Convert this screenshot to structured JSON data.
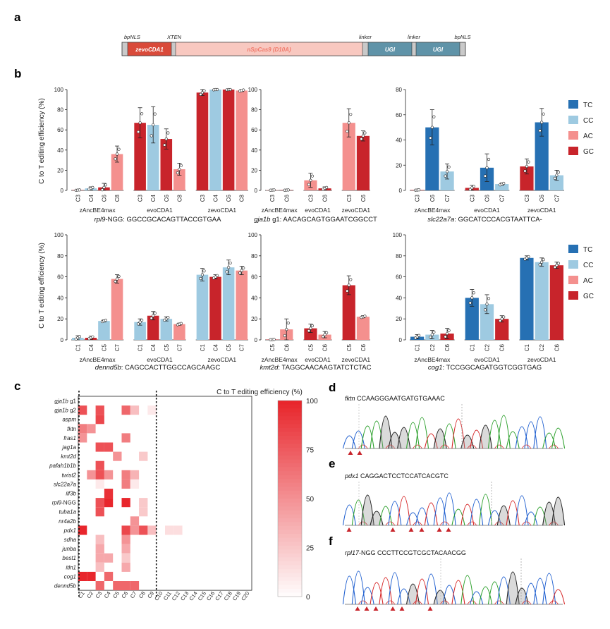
{
  "panel_labels": {
    "a": "a",
    "b": "b",
    "c": "c",
    "d": "d",
    "e": "e",
    "f": "f"
  },
  "construct": {
    "labels_top": [
      "bpNLS",
      "XTEN",
      "linker",
      "linker",
      "bpNLS"
    ],
    "segments": [
      {
        "label": "zevoCDA1",
        "color": "#d94a3a"
      },
      {
        "label": "nSpCas9 (D10A)",
        "color": "#f8c8c0"
      },
      {
        "label": "UGI",
        "color": "#5f93a8"
      },
      {
        "label": "UGI",
        "color": "#5f93a8"
      }
    ]
  },
  "legend": [
    {
      "label": "TC",
      "color": "#2670b3"
    },
    {
      "label": "CC",
      "color": "#9ecae1"
    },
    {
      "label": "AC",
      "color": "#f4908e"
    },
    {
      "label": "GC",
      "color": "#c8242b"
    }
  ],
  "y_axis_label": "C to T editing efficiency (%)",
  "chart_data": [
    {
      "type": "bar",
      "ylim": [
        0,
        100
      ],
      "yticks": [
        0,
        20,
        40,
        60,
        80,
        100
      ],
      "groups": [
        {
          "name": "zAncBE4max",
          "cats": [
            "C3",
            "C4",
            "C6",
            "C8"
          ],
          "colors": [
            "GC",
            "CC",
            "GC",
            "AC"
          ],
          "values": [
            0.3,
            2,
            3,
            36
          ],
          "err": [
            0.3,
            1.5,
            4,
            8
          ]
        },
        {
          "name": "evoCDA1",
          "cats": [
            "C3",
            "C4",
            "C6",
            "C8"
          ],
          "colors": [
            "GC",
            "CC",
            "GC",
            "AC"
          ],
          "values": [
            67,
            65,
            51,
            21
          ],
          "err": [
            15,
            18,
            10,
            6
          ]
        },
        {
          "name": "zevoCDA1",
          "cats": [
            "C3",
            "C4",
            "C6",
            "C8"
          ],
          "colors": [
            "GC",
            "CC",
            "GC",
            "AC"
          ],
          "values": [
            97,
            100,
            100,
            99
          ],
          "err": [
            3,
            0.5,
            0.5,
            1
          ]
        }
      ],
      "caption_italic": "rpl9",
      "caption": "-NGG: GGCCGCACAGTTACCGTGAA"
    },
    {
      "type": "bar",
      "ylim": [
        0,
        100
      ],
      "yticks": [
        0,
        20,
        40,
        60,
        80,
        100
      ],
      "groups": [
        {
          "name": "zAncBE4max",
          "cats": [
            "C3",
            "C6"
          ],
          "colors": [
            "AC",
            "GC"
          ],
          "values": [
            0.3,
            0.3
          ],
          "err": [
            0.2,
            0.2
          ]
        },
        {
          "name": "evoCDA1",
          "cats": [
            "C3",
            "C6"
          ],
          "colors": [
            "AC",
            "GC"
          ],
          "values": [
            10,
            2
          ],
          "err": [
            7,
            1.5
          ]
        },
        {
          "name": "zevoCDA1",
          "cats": [
            "C3",
            "C6"
          ],
          "colors": [
            "AC",
            "GC"
          ],
          "values": [
            67,
            54
          ],
          "err": [
            14,
            5
          ]
        }
      ],
      "caption_italic": "gja1b",
      "caption": " g1: AACAGCAGTGGAATCGGCCT"
    },
    {
      "type": "bar",
      "ylim": [
        0,
        80
      ],
      "yticks": [
        0,
        20,
        40,
        60,
        80
      ],
      "groups": [
        {
          "name": "zAncBE4max",
          "cats": [
            "C3",
            "C6",
            "C7"
          ],
          "colors": [
            "GC",
            "TC",
            "CC"
          ],
          "values": [
            0.3,
            50,
            15
          ],
          "err": [
            0.2,
            14,
            6
          ]
        },
        {
          "name": "evoCDA1",
          "cats": [
            "C3",
            "C6",
            "C7"
          ],
          "colors": [
            "GC",
            "TC",
            "CC"
          ],
          "values": [
            2,
            18,
            5
          ],
          "err": [
            2,
            11,
            1
          ]
        },
        {
          "name": "zevoCDA1",
          "cats": [
            "C3",
            "C6",
            "C7"
          ],
          "colors": [
            "GC",
            "TC",
            "CC"
          ],
          "values": [
            19,
            54,
            12
          ],
          "err": [
            6,
            11,
            4
          ]
        }
      ],
      "caption_italic": "slc22a7a",
      "caption": ": GGCATCCCACGTAATTCA-"
    },
    {
      "type": "bar",
      "ylim": [
        0,
        100
      ],
      "yticks": [
        0,
        20,
        40,
        60,
        80,
        100
      ],
      "groups": [
        {
          "name": "zAncBE4max",
          "cats": [
            "C1",
            "C4",
            "C5",
            "C7"
          ],
          "colors": [
            "CC",
            "GC",
            "CC",
            "AC"
          ],
          "values": [
            2,
            2,
            18,
            58
          ],
          "err": [
            2,
            1.5,
            1,
            4
          ]
        },
        {
          "name": "evoCDA1",
          "cats": [
            "C1",
            "C4",
            "C5",
            "C7"
          ],
          "colors": [
            "CC",
            "GC",
            "CC",
            "AC"
          ],
          "values": [
            17,
            23,
            20,
            15
          ],
          "err": [
            3,
            4,
            2,
            1
          ]
        },
        {
          "name": "zevoCDA1",
          "cats": [
            "C1",
            "C4",
            "C5",
            "C7"
          ],
          "colors": [
            "CC",
            "GC",
            "CC",
            "AC"
          ],
          "values": [
            62,
            60,
            69,
            66
          ],
          "err": [
            6,
            2,
            7,
            4
          ]
        }
      ],
      "caption_italic": "dennd5b",
      "caption": ":  CAGCCACTTGGCCAGCAAGC"
    },
    {
      "type": "bar",
      "ylim": [
        0,
        100
      ],
      "yticks": [
        0,
        20,
        40,
        60,
        80,
        100
      ],
      "groups": [
        {
          "name": "zAncBE4max",
          "cats": [
            "C5",
            "C6"
          ],
          "colors": [
            "GC",
            "AC"
          ],
          "values": [
            0.3,
            10
          ],
          "err": [
            0.2,
            10
          ]
        },
        {
          "name": "evoCDA1",
          "cats": [
            "C5",
            "C6"
          ],
          "colors": [
            "GC",
            "AC"
          ],
          "values": [
            11,
            5
          ],
          "err": [
            4,
            3
          ]
        },
        {
          "name": "zevoCDA1",
          "cats": [
            "C5",
            "C6"
          ],
          "colors": [
            "GC",
            "AC"
          ],
          "values": [
            52,
            22
          ],
          "err": [
            9,
            1
          ]
        }
      ],
      "caption_italic": "kmt2d",
      "caption": ": TAGGCAACAAGTATCTCTAC"
    },
    {
      "type": "bar",
      "ylim": [
        0,
        100
      ],
      "yticks": [
        0,
        20,
        40,
        60,
        80,
        100
      ],
      "groups": [
        {
          "name": "zAncBE4max",
          "cats": [
            "C1",
            "C2",
            "C6"
          ],
          "colors": [
            "TC",
            "CC",
            "GC"
          ],
          "values": [
            3,
            5,
            6
          ],
          "err": [
            2,
            4,
            5
          ]
        },
        {
          "name": "evoCDA1",
          "cats": [
            "C1",
            "C2",
            "C6"
          ],
          "colors": [
            "TC",
            "CC",
            "GC"
          ],
          "values": [
            40,
            34,
            20
          ],
          "err": [
            8,
            9,
            3
          ]
        },
        {
          "name": "zevoCDA1",
          "cats": [
            "C1",
            "C2",
            "C6"
          ],
          "colors": [
            "TC",
            "CC",
            "GC"
          ],
          "values": [
            78,
            74,
            71
          ],
          "err": [
            2,
            4,
            3
          ]
        }
      ],
      "caption_italic": "cog1",
      "caption": ": TCCGGCAGATGGTCGGTGAG"
    }
  ],
  "heatmap": {
    "title": "C to T editing efficiency (%)",
    "colorbar_ticks": [
      0,
      25,
      50,
      75,
      100
    ],
    "rows": [
      "gja1b g1",
      "gja1b g2",
      "aspm",
      "fktn",
      "fras1",
      "jag1a",
      "kmt2d",
      "pafah1b1b",
      "twist2",
      "slc22a7a",
      "ilf3b",
      "rpl9-NGG",
      "tuba1a",
      "nr4a2b",
      "pdx1",
      "sdha",
      "junba",
      "best1",
      "itln1",
      "cog1",
      "dennd5b"
    ],
    "cols": [
      "C1",
      "C2",
      "C3",
      "C4",
      "C5",
      "C6",
      "C7",
      "C8",
      "C9",
      "C10",
      "C11",
      "C12",
      "C13",
      "C14",
      "C15",
      "C16",
      "C17",
      "C18",
      "C19",
      "C20"
    ],
    "values": [
      [
        0,
        0,
        0,
        0,
        0,
        0,
        0,
        0,
        0,
        0,
        0,
        0,
        0,
        0,
        0,
        0,
        0,
        0,
        0,
        0
      ],
      [
        80,
        0,
        80,
        0,
        0,
        70,
        30,
        0,
        10,
        0,
        0,
        0,
        0,
        0,
        0,
        0,
        0,
        0,
        0,
        0
      ],
      [
        0,
        0,
        85,
        0,
        0,
        0,
        0,
        0,
        0,
        0,
        0,
        0,
        0,
        0,
        0,
        0,
        0,
        0,
        0,
        0
      ],
      [
        60,
        50,
        0,
        0,
        0,
        0,
        0,
        0,
        0,
        0,
        0,
        0,
        0,
        0,
        0,
        0,
        0,
        0,
        0,
        0
      ],
      [
        50,
        0,
        0,
        0,
        0,
        60,
        0,
        0,
        0,
        0,
        0,
        0,
        0,
        0,
        0,
        0,
        0,
        0,
        0,
        0
      ],
      [
        0,
        0,
        80,
        80,
        0,
        0,
        0,
        0,
        0,
        0,
        0,
        0,
        0,
        0,
        0,
        0,
        0,
        0,
        0,
        0
      ],
      [
        0,
        0,
        0,
        0,
        50,
        0,
        0,
        25,
        0,
        0,
        0,
        0,
        0,
        0,
        0,
        0,
        0,
        0,
        0,
        0
      ],
      [
        0,
        0,
        80,
        0,
        0,
        0,
        0,
        0,
        0,
        0,
        0,
        0,
        0,
        0,
        0,
        0,
        0,
        0,
        0,
        0
      ],
      [
        0,
        50,
        80,
        50,
        0,
        60,
        35,
        0,
        0,
        0,
        0,
        0,
        0,
        0,
        0,
        0,
        0,
        0,
        0,
        0
      ],
      [
        0,
        0,
        10,
        0,
        0,
        60,
        10,
        0,
        0,
        0,
        0,
        0,
        0,
        0,
        0,
        0,
        0,
        0,
        0,
        0
      ],
      [
        0,
        0,
        0,
        95,
        0,
        0,
        0,
        0,
        0,
        0,
        0,
        0,
        0,
        0,
        0,
        0,
        0,
        0,
        0,
        0
      ],
      [
        0,
        0,
        80,
        100,
        0,
        100,
        0,
        25,
        0,
        0,
        0,
        0,
        0,
        0,
        0,
        0,
        0,
        0,
        0,
        0
      ],
      [
        0,
        0,
        80,
        0,
        0,
        0,
        0,
        25,
        0,
        0,
        0,
        0,
        0,
        0,
        0,
        0,
        0,
        0,
        0,
        0
      ],
      [
        0,
        0,
        0,
        0,
        0,
        0,
        50,
        0,
        0,
        0,
        0,
        0,
        0,
        0,
        0,
        0,
        0,
        0,
        0,
        0
      ],
      [
        100,
        0,
        0,
        0,
        0,
        85,
        50,
        80,
        30,
        0,
        15,
        15,
        0,
        0,
        0,
        0,
        0,
        0,
        0,
        0
      ],
      [
        0,
        0,
        30,
        0,
        0,
        50,
        0,
        0,
        0,
        0,
        0,
        0,
        0,
        0,
        0,
        0,
        0,
        0,
        0,
        0
      ],
      [
        0,
        0,
        40,
        0,
        0,
        40,
        0,
        0,
        0,
        0,
        0,
        0,
        0,
        0,
        0,
        0,
        0,
        0,
        0,
        0
      ],
      [
        0,
        0,
        40,
        40,
        0,
        25,
        0,
        0,
        0,
        0,
        0,
        0,
        0,
        0,
        0,
        0,
        0,
        0,
        0,
        0
      ],
      [
        0,
        0,
        30,
        0,
        0,
        40,
        0,
        0,
        0,
        0,
        0,
        0,
        0,
        0,
        0,
        0,
        0,
        0,
        0,
        0
      ],
      [
        100,
        100,
        0,
        70,
        0,
        0,
        0,
        0,
        0,
        0,
        0,
        0,
        0,
        0,
        0,
        0,
        0,
        0,
        0,
        0
      ],
      [
        0,
        0,
        70,
        0,
        70,
        70,
        70,
        0,
        0,
        0,
        0,
        0,
        0,
        0,
        0,
        0,
        0,
        0,
        0,
        0
      ]
    ]
  },
  "chromatograms": [
    {
      "label": "d",
      "gene": "fktn",
      "seq": "CCAAGGGAATGATGTGAAAC",
      "markers": 2
    },
    {
      "label": "e",
      "gene": "pdx1",
      "seq": "CAGGACTCCTCCATCACGTC",
      "markers": 6
    },
    {
      "label": "f",
      "gene": "rpl17",
      "gene_suffix": "-NGG",
      "seq": "CCCTTCCGTCGCTACAACGG",
      "markers": 6
    }
  ],
  "colors": {
    "axis": "#222222",
    "heat_high": "#e8262c",
    "marker": "#c8242b"
  }
}
